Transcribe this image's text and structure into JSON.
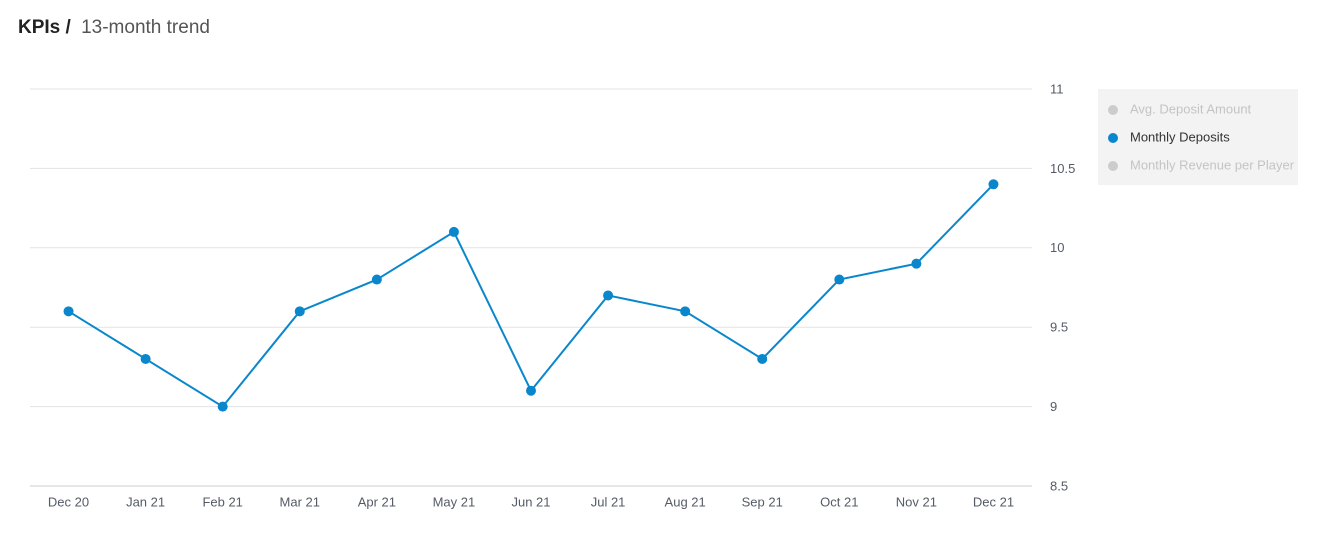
{
  "chart_data": {
    "type": "line",
    "title": "KPIs /",
    "subtitle": "13-month trend",
    "categories": [
      "Dec 20",
      "Jan 21",
      "Feb 21",
      "Mar 21",
      "Apr 21",
      "May 21",
      "Jun 21",
      "Jul 21",
      "Aug 21",
      "Sep 21",
      "Oct 21",
      "Nov 21",
      "Dec 21"
    ],
    "series": [
      {
        "name": "Avg. Deposit Amount",
        "color": "#cccccc",
        "visible": false
      },
      {
        "name": "Monthly Deposits",
        "color": "#0a87cc",
        "visible": true,
        "values": [
          9.6,
          9.3,
          9.0,
          9.6,
          9.8,
          10.1,
          9.1,
          9.7,
          9.6,
          9.3,
          9.8,
          9.9,
          10.4
        ]
      },
      {
        "name": "Monthly Revenue per Player",
        "color": "#cccccc",
        "visible": false
      }
    ],
    "ylim": [
      8.5,
      11
    ],
    "yticks": [
      8.5,
      9,
      9.5,
      10,
      10.5,
      11
    ],
    "grid": true,
    "y_axis_side": "right",
    "legend": "right"
  }
}
